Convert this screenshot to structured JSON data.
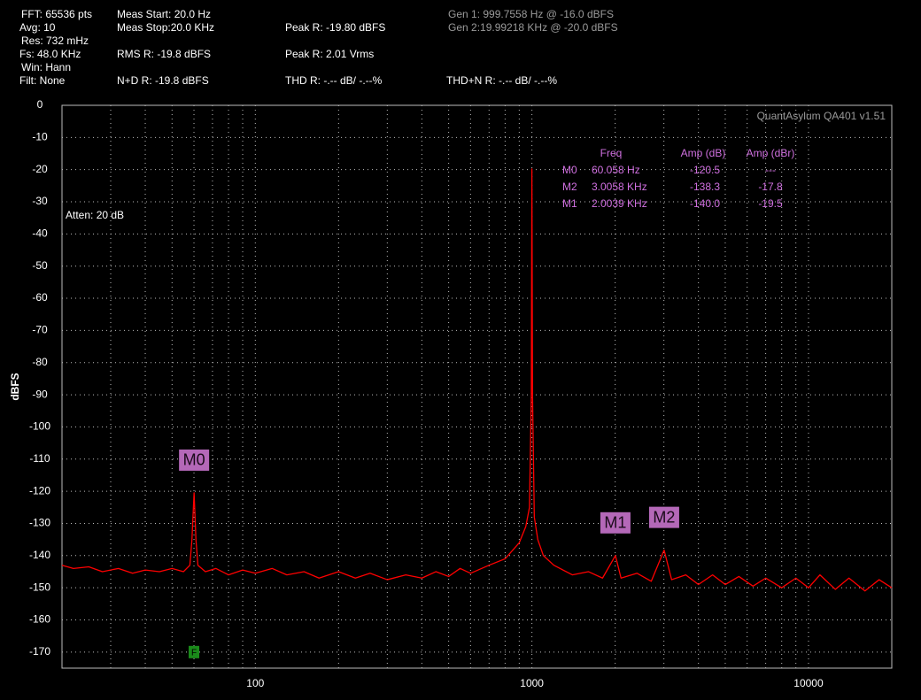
{
  "status": [
    "FFT: 65536 pts",
    "Avg: 10",
    "Res: 732 mHz",
    "Fs: 48.0 KHz",
    "Win: Hann",
    "Filt: None",
    "Meas Start: 20.0 Hz",
    "Meas Stop:20.0 KHz",
    "RMS R: -19.8 dBFS",
    "N+D R: -19.8 dBFS",
    "Peak R: -19.80 dBFS",
    "Peak R: 2.01 Vrms",
    "THD R: -.-- dB/ -.--%",
    "Gen 1: 999.7558 Hz @ -16.0  dBFS",
    "Gen 2:19.99218 KHz @ -20.0  dBFS",
    "THD+N R: -.-- dB/ -.--%"
  ],
  "chart_data": {
    "type": "line",
    "ylabel": "dBFS",
    "watermark": "QuantAsylum QA401 v1.51",
    "annotation": "Atten: 20 dB",
    "log_x": true,
    "grid": true,
    "xlim": [
      20,
      20000
    ],
    "xticks": [
      100,
      1000,
      10000
    ],
    "xminorticks": [
      30,
      40,
      50,
      60,
      70,
      80,
      90,
      200,
      300,
      400,
      500,
      600,
      700,
      800,
      900,
      2000,
      3000,
      4000,
      5000,
      6000,
      7000,
      8000,
      9000
    ],
    "ylim": [
      -175,
      0
    ],
    "yticks": [
      0,
      -10,
      -20,
      -30,
      -40,
      -50,
      -60,
      -70,
      -80,
      -90,
      -100,
      -110,
      -120,
      -130,
      -140,
      -150,
      -160,
      -170
    ],
    "series": [
      {
        "color": "#ff0000",
        "x": [
          20,
          22,
          25,
          28,
          32,
          36,
          40,
          45,
          50,
          55,
          58,
          59,
          60.058,
          61,
          62,
          66,
          72,
          80,
          90,
          100,
          115,
          130,
          150,
          170,
          200,
          230,
          260,
          300,
          350,
          400,
          450,
          500,
          550,
          600,
          700,
          800,
          900,
          950,
          980,
          995,
          999.7558,
          1005,
          1020,
          1050,
          1100,
          1200,
          1400,
          1600,
          1800,
          2003.9,
          2100,
          2400,
          2700,
          3005.8,
          3200,
          3600,
          4000,
          4500,
          5000,
          5600,
          6300,
          7000,
          8000,
          9000,
          10000,
          11000,
          12500,
          14000,
          16000,
          18000,
          20000
        ],
        "values": [
          -143,
          -144,
          -143.5,
          -145,
          -144,
          -145.5,
          -144.5,
          -145,
          -144,
          -145,
          -143,
          -135,
          -120.5,
          -135,
          -143,
          -145,
          -144,
          -146,
          -144.5,
          -145.5,
          -144,
          -146,
          -145,
          -147,
          -145,
          -147,
          -145.5,
          -147.5,
          -146,
          -147,
          -145,
          -146.5,
          -144,
          -145.5,
          -143,
          -141,
          -136,
          -131,
          -125,
          -90,
          -19.8,
          -90,
          -128,
          -135,
          -140,
          -143,
          -146,
          -145,
          -147,
          -140,
          -147,
          -145.5,
          -148,
          -138.3,
          -147.5,
          -146,
          -149,
          -146,
          -149,
          -146.5,
          -149.5,
          -147,
          -150,
          -147,
          -150,
          -146,
          -150.5,
          -147,
          -151,
          -147.5,
          -150
        ]
      }
    ],
    "markers": [
      {
        "label": "M0",
        "x": 60.058,
        "value": -120.5
      },
      {
        "label": "M1",
        "x": 2003.9,
        "value": -140
      },
      {
        "label": "M2",
        "x": 3005.8,
        "value": -138.3
      }
    ],
    "fundamental_marker": {
      "label": "F",
      "x": 60,
      "value": -170
    },
    "marker_table": {
      "headers": [
        "Freq",
        "Amp (dB)",
        "Amp (dBr)"
      ],
      "rows": [
        [
          "M0",
          "60.058 Hz",
          "-120.5",
          "---"
        ],
        [
          "M2",
          "3.0058 KHz",
          "-138.3",
          "-17.8"
        ],
        [
          "M1",
          "2.0039 KHz",
          "-140.0",
          "-19.5"
        ]
      ]
    }
  }
}
